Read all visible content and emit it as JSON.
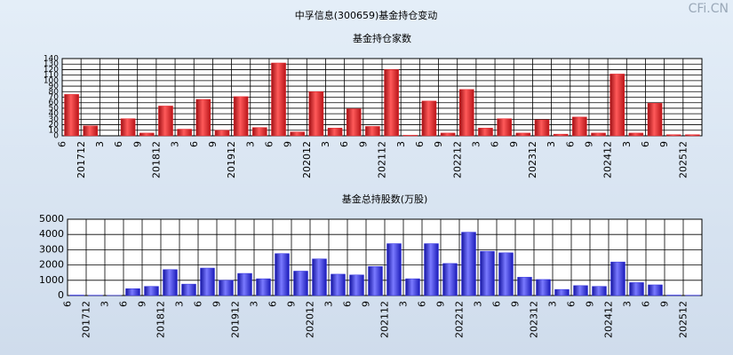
{
  "header": {
    "title": "中孚信息(300659)基金持仓变动",
    "watermark": "CFi.CN"
  },
  "chart_data": [
    {
      "type": "bar",
      "title": "基金持仓家数",
      "color": "#e8262c",
      "grid": true,
      "categories": [
        "6",
        "201712",
        "3",
        "6",
        "9",
        "201812",
        "3",
        "6",
        "9",
        "201912",
        "3",
        "6",
        "9",
        "202012",
        "3",
        "6",
        "9",
        "202112",
        "3",
        "6",
        "9",
        "202212",
        "3",
        "6",
        "9",
        "202312",
        "3",
        "6",
        "9",
        "202412",
        "3",
        "6",
        "9",
        "202512"
      ],
      "values": [
        75,
        18,
        0,
        31,
        5,
        54,
        12,
        66,
        10,
        71,
        15,
        132,
        7,
        80,
        14,
        49,
        17,
        120,
        1,
        63,
        5,
        84,
        14,
        31,
        5,
        29,
        3,
        34,
        5,
        112,
        5,
        59,
        2,
        2
      ],
      "ylim": [
        0,
        140
      ],
      "yticks": [
        0,
        10,
        20,
        30,
        40,
        50,
        60,
        70,
        80,
        90,
        100,
        110,
        120,
        130,
        140
      ]
    },
    {
      "type": "bar",
      "title": "基金总持股数(万股)",
      "color": "#2f2fe0",
      "grid": true,
      "categories": [
        "6",
        "201712",
        "3",
        "6",
        "9",
        "201812",
        "3",
        "6",
        "9",
        "201912",
        "3",
        "6",
        "9",
        "202012",
        "3",
        "6",
        "9",
        "202112",
        "3",
        "6",
        "9",
        "202212",
        "3",
        "6",
        "9",
        "202312",
        "3",
        "6",
        "9",
        "202412",
        "3",
        "6",
        "9",
        "202512"
      ],
      "values": [
        30,
        20,
        10,
        450,
        600,
        1700,
        750,
        1800,
        1000,
        1450,
        1100,
        2750,
        1600,
        2400,
        1400,
        1350,
        1900,
        3400,
        1100,
        3400,
        2100,
        4150,
        2900,
        2800,
        1200,
        1050,
        400,
        650,
        600,
        2200,
        850,
        700,
        30,
        20
      ],
      "ylim": [
        0,
        5000
      ],
      "yticks": [
        0,
        1000,
        2000,
        3000,
        4000,
        5000
      ]
    }
  ]
}
